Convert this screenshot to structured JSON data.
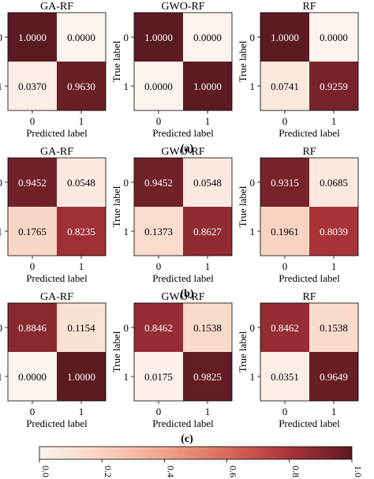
{
  "chart_data": {
    "type": "heatmap",
    "description_rows": [
      "(a)",
      "(b)",
      "(c)"
    ],
    "models": [
      "GA-RF",
      "GWO-RF",
      "RF"
    ],
    "xlabel": "Predicted label",
    "ylabel": "True label",
    "classes": [
      "0",
      "1"
    ],
    "matrices": [
      [
        [
          [
            1.0,
            0.0
          ],
          [
            0.037,
            0.963
          ]
        ],
        [
          [
            1.0,
            0.0
          ],
          [
            0.0,
            1.0
          ]
        ],
        [
          [
            1.0,
            0.0
          ],
          [
            0.0741,
            0.9259
          ]
        ]
      ],
      [
        [
          [
            0.9452,
            0.0548
          ],
          [
            0.1765,
            0.8235
          ]
        ],
        [
          [
            0.9452,
            0.0548
          ],
          [
            0.1373,
            0.8627
          ]
        ],
        [
          [
            0.9315,
            0.0685
          ],
          [
            0.1961,
            0.8039
          ]
        ]
      ],
      [
        [
          [
            0.8846,
            0.1154
          ],
          [
            0.0,
            1.0
          ]
        ],
        [
          [
            0.8462,
            0.1538
          ],
          [
            0.0175,
            0.9825
          ]
        ],
        [
          [
            0.8462,
            0.1538
          ],
          [
            0.0351,
            0.9649
          ]
        ]
      ]
    ],
    "colorbar": {
      "ticks": [
        "0.0",
        "0.2",
        "0.4",
        "0.6",
        "0.8",
        "1.0"
      ],
      "range": [
        0,
        1
      ],
      "colormap": "Reds-to-darkred",
      "color_low": "#fdf3ee",
      "color_high": "#5c1a22"
    }
  }
}
